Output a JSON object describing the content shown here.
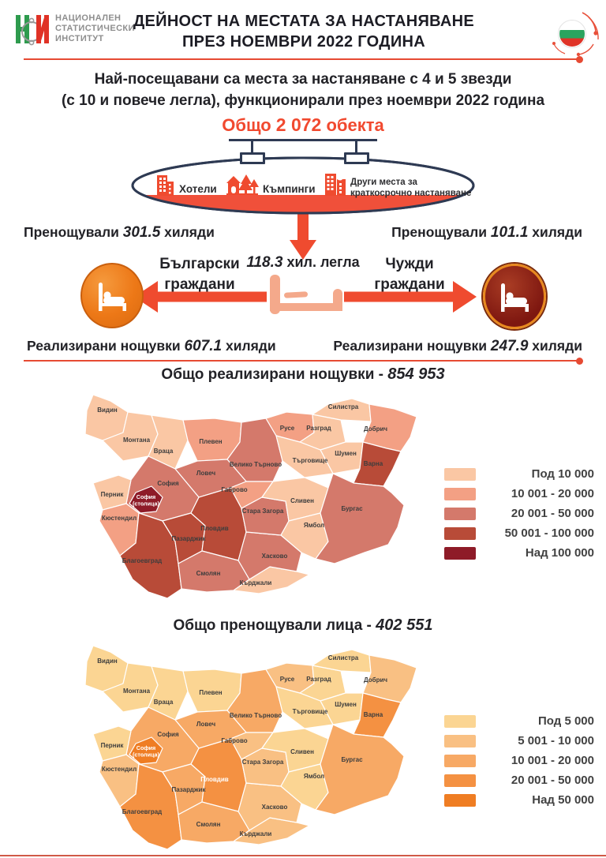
{
  "header": {
    "org_name_line1": "НАЦИОНАЛЕН",
    "org_name_line2": "СТАТИСТИЧЕСКИ",
    "org_name_line3": "ИНСТИТУТ",
    "title_line1": "ДЕЙНОСТ НА МЕСТАТА ЗА НАСТАНЯВАНЕ",
    "title_line2": "ПРЕЗ НОЕМВРИ 2022 ГОДИНА"
  },
  "subtitle": {
    "line1": "Най-посещавани са места за настаняване с 4 и 5 звезди",
    "line2": "(с 10 и повече легла), функционирали през ноември 2022 година"
  },
  "total_objects": {
    "prefix": "Общо ",
    "value": "2 072",
    "suffix": " обекта"
  },
  "categories": {
    "hotels": "Хотели",
    "campsites": "Къмпинги",
    "other_line1": "Други места за",
    "other_line2": "краткосрочно настаняване"
  },
  "beds": {
    "value": "118.3",
    "label": " хил. легла"
  },
  "bulgarian": {
    "group_line1": "Български",
    "group_line2": "граждани",
    "overnight_prefix": "Пренощували ",
    "overnight_value": "301.5",
    "overnight_suffix": " хиляди",
    "nights_prefix": "Реализирани нощувки ",
    "nights_value": "607.1",
    "nights_suffix": " хиляди"
  },
  "foreign": {
    "group_line1": "Чужди",
    "group_line2": "граждани",
    "overnight_prefix": "Пренощували ",
    "overnight_value": "101.1",
    "overnight_suffix": " хиляди",
    "nights_prefix": "Реализирани нощувки ",
    "nights_value": "247.9",
    "nights_suffix": " хиляди"
  },
  "icons": {
    "nsi_logo": "nsi-logo-icon",
    "flag": "bulgaria-flag-orbit-icon",
    "hotel": "hotel-building-icon",
    "camping": "campsite-icon",
    "other_places": "city-buildings-icon",
    "bed_center": "bed-icon",
    "bed_in_circle": "person-in-bed-icon",
    "arrow": "thick-arrow"
  },
  "colors": {
    "accent_red": "#f1492f",
    "arrow_red": "#ef4b2f",
    "navy": "#2e3a53",
    "bed_salmon": "#f4a98b",
    "orange_circle": "#ed7817",
    "maroon_circle": "#7e1710"
  },
  "region_names": {
    "vidin": "Видин",
    "montana": "Монтана",
    "vratsa": "Враца",
    "pleven": "Плевен",
    "veliko_tarnovo": "Велико Търново",
    "ruse": "Русе",
    "razgrad": "Разград",
    "silistra": "Силистра",
    "dobrich": "Добрич",
    "shumen": "Шумен",
    "targovishte": "Търговище",
    "varna": "Варна",
    "lovech": "Ловеч",
    "gabrovo": "Габрово",
    "sofia_region": "София",
    "sofia_city": "София (столица)",
    "pernik": "Перник",
    "kyustendil": "Кюстендил",
    "blagoevgrad": "Благоевград",
    "pazardzhik": "Пазарджик",
    "plovdiv": "Пловдив",
    "smolyan": "Смолян",
    "kardzhali": "Кърджали",
    "haskovo": "Хасково",
    "stara_zagora": "Стара Загора",
    "sliven": "Сливен",
    "yambol": "Ямбол",
    "burgas": "Бургас"
  },
  "chart_data": [
    {
      "type": "choropleth",
      "key": "nights",
      "title_prefix": "Общо реализирани нощувки - ",
      "total_label": "854 953",
      "total": 854953,
      "metric": "реализирани нощувки",
      "legend": [
        "Под 10 000",
        "10 001 - 20 000",
        "20 001 - 50 000",
        "50 001 - 100 000",
        "Над 100 000"
      ],
      "palette": [
        "#FAC7A4",
        "#F3A084",
        "#D4796B",
        "#B84B38",
        "#8E1B28"
      ],
      "light_label_regions": [
        "sofia_city"
      ],
      "values": {
        "vidin": 0,
        "montana": 0,
        "vratsa": 0,
        "pleven": 1,
        "veliko_tarnovo": 2,
        "ruse": 1,
        "razgrad": 0,
        "silistra": 0,
        "dobrich": 1,
        "shumen": 0,
        "targovishte": 0,
        "varna": 3,
        "lovech": 2,
        "gabrovo": 1,
        "sofia_region": 2,
        "sofia_city": 4,
        "pernik": 0,
        "kyustendil": 1,
        "blagoevgrad": 3,
        "pazardzhik": 3,
        "plovdiv": 3,
        "smolyan": 2,
        "kardzhali": 0,
        "haskovo": 2,
        "stara_zagora": 2,
        "sliven": 0,
        "yambol": 0,
        "burgas": 2
      }
    },
    {
      "type": "choropleth",
      "key": "persons",
      "title_prefix": "Общо пренощували лица - ",
      "total_label": "402 551",
      "total": 402551,
      "metric": "пренощували лица",
      "legend": [
        "Под 5 000",
        "5 001 - 10 000",
        "10 001 - 20 000",
        "20 001 - 50 000",
        "Над 50 000"
      ],
      "palette": [
        "#FBD593",
        "#F9C083",
        "#F7A965",
        "#F49142",
        "#EF7D23"
      ],
      "light_label_regions": [
        "sofia_city",
        "plovdiv"
      ],
      "values": {
        "vidin": 0,
        "montana": 0,
        "vratsa": 0,
        "pleven": 0,
        "veliko_tarnovo": 2,
        "ruse": 1,
        "razgrad": 0,
        "silistra": 0,
        "dobrich": 1,
        "shumen": 0,
        "targovishte": 0,
        "varna": 3,
        "lovech": 2,
        "gabrovo": 1,
        "sofia_region": 2,
        "sofia_city": 4,
        "pernik": 0,
        "kyustendil": 1,
        "blagoevgrad": 3,
        "pazardzhik": 2,
        "plovdiv": 3,
        "smolyan": 2,
        "kardzhali": 1,
        "haskovo": 1,
        "stara_zagora": 1,
        "sliven": 0,
        "yambol": 0,
        "burgas": 2
      }
    }
  ]
}
